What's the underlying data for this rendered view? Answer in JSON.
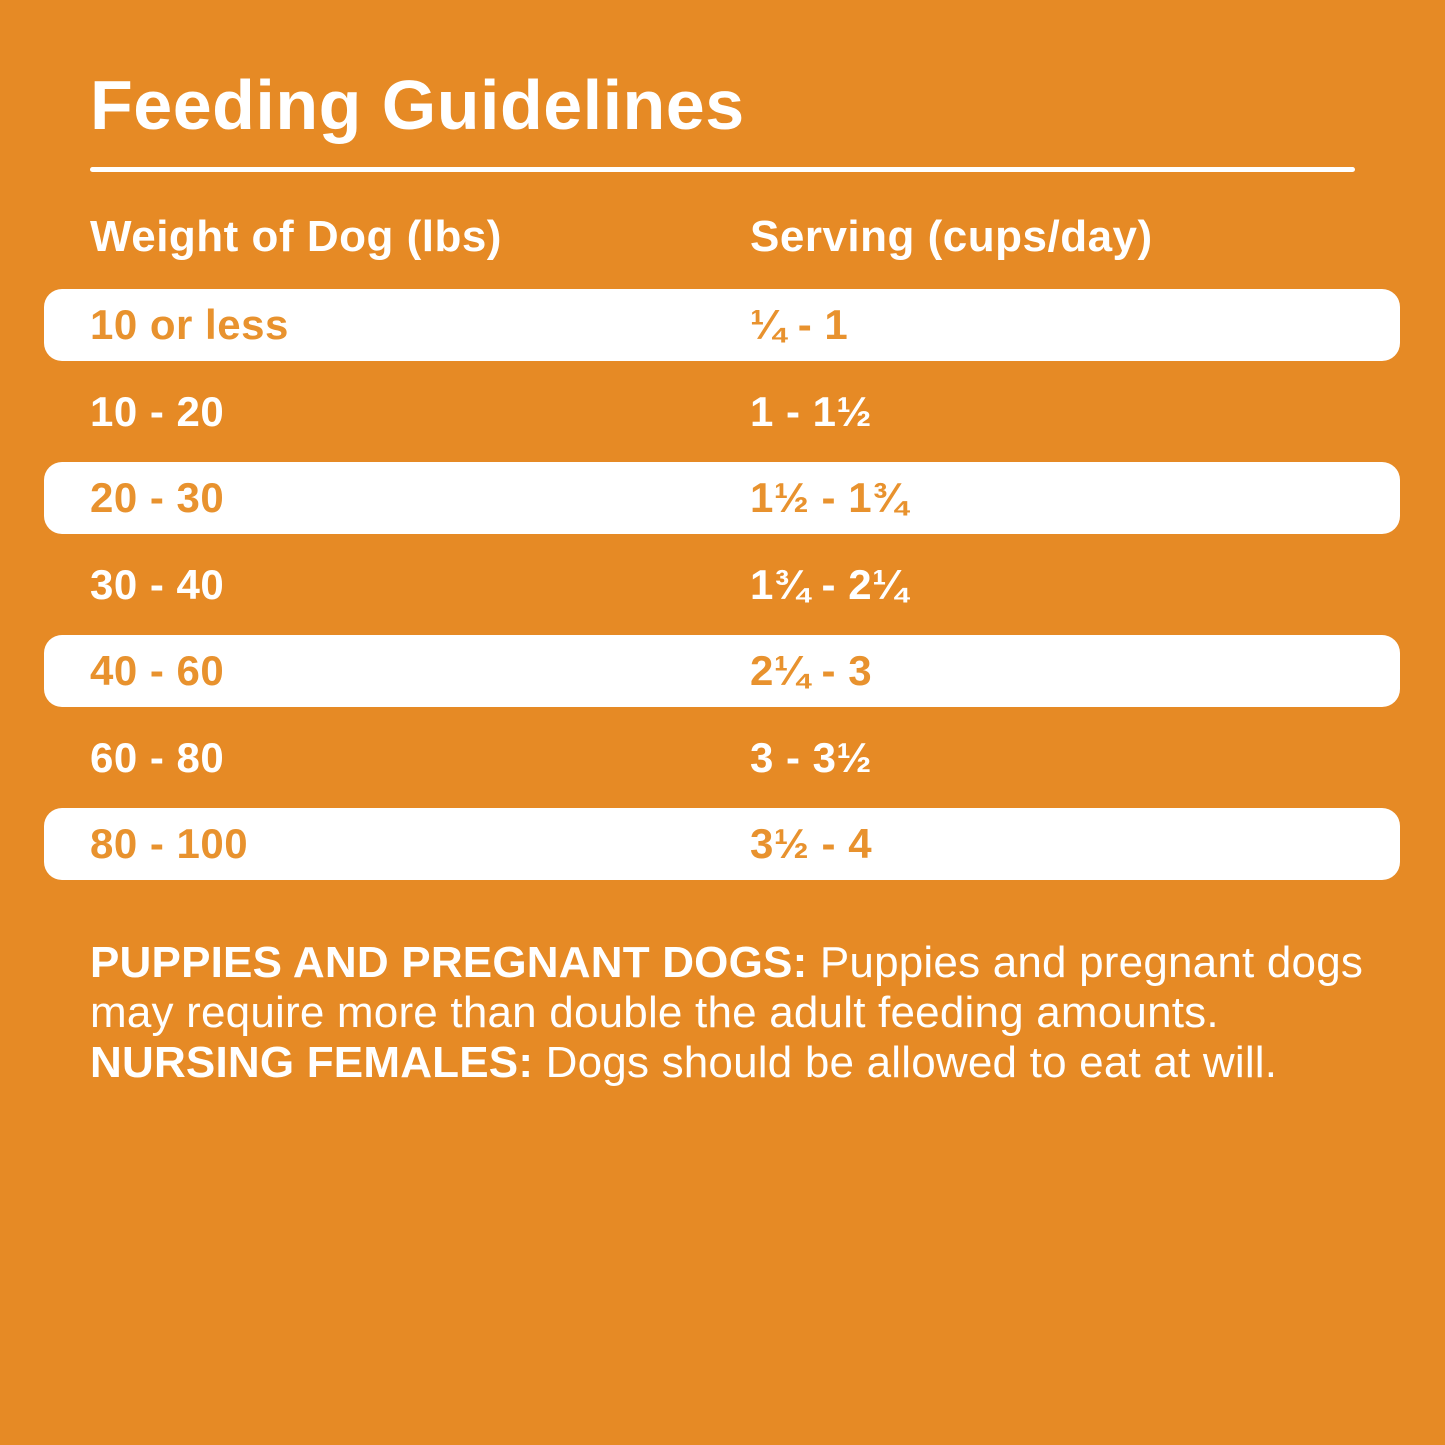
{
  "page": {
    "title": "Feeding Guidelines",
    "colors": {
      "background": "#E68A25",
      "row_highlight": "#FFFFFF",
      "orange_text": "#E8922E",
      "white_text": "#FFFFFF"
    }
  },
  "table": {
    "headers": {
      "weight": "Weight of Dog (lbs)",
      "serving": "Serving (cups/day)"
    },
    "rows": [
      {
        "weight": "10 or less",
        "serving": "¼ - 1",
        "highlighted": true
      },
      {
        "weight": "10 - 20",
        "serving": "1 - 1½",
        "highlighted": false
      },
      {
        "weight": "20 - 30",
        "serving": "1½ - 1¾",
        "highlighted": true
      },
      {
        "weight": "30 - 40",
        "serving": "1¾ - 2¼",
        "highlighted": false
      },
      {
        "weight": "40 - 60",
        "serving": "2¼ - 3",
        "highlighted": true
      },
      {
        "weight": "60 - 80",
        "serving": "3 - 3½",
        "highlighted": false
      },
      {
        "weight": "80 - 100",
        "serving": "3½ - 4",
        "highlighted": true
      }
    ]
  },
  "footnote": {
    "segments": [
      {
        "text": "PUPPIES AND PREGNANT DOGS: ",
        "bold": true
      },
      {
        "text": "Puppies and pregnant dogs may require more than double the adult feeding amounts. ",
        "bold": false
      },
      {
        "text": "NURSING FEMALES: ",
        "bold": true
      },
      {
        "text": "Dogs should be allowed to eat at will.",
        "bold": false
      }
    ]
  }
}
